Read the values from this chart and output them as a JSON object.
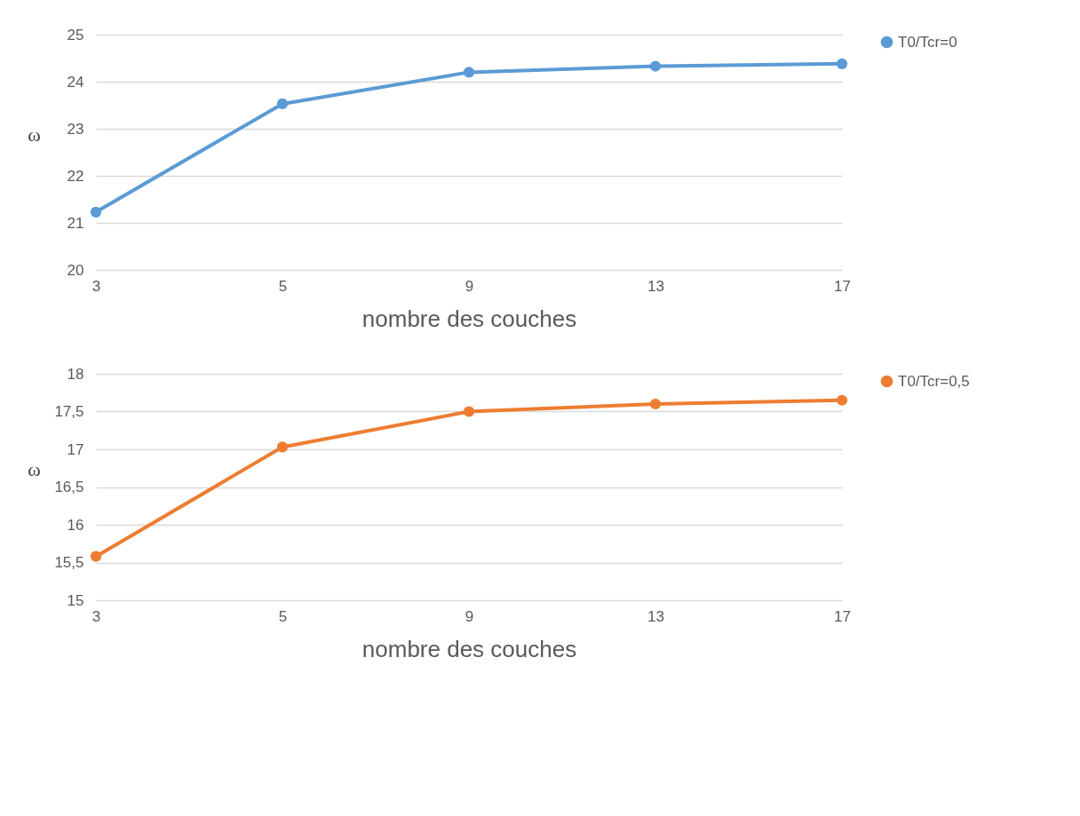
{
  "chart_data": [
    {
      "type": "line",
      "categories": [
        "3",
        "5",
        "9",
        "13",
        "17"
      ],
      "xlabel": "nombre des couches",
      "ylabel": "ω",
      "ylim": [
        20,
        25
      ],
      "yticks": [
        20,
        21,
        22,
        23,
        24,
        25
      ],
      "grid": "y",
      "legend": "right",
      "marker": "circle",
      "series": [
        {
          "name": "T0/Tcr=0",
          "color": "#5b9bd5",
          "values": [
            21.23,
            23.53,
            24.2,
            24.33,
            24.38
          ]
        }
      ]
    },
    {
      "type": "line",
      "categories": [
        "3",
        "5",
        "9",
        "13",
        "17"
      ],
      "xlabel": "nombre des couches",
      "ylabel": "ω",
      "ylim": [
        15,
        18
      ],
      "yticks": [
        15,
        {
          "value": 15.5,
          "label": "15,5"
        },
        16,
        {
          "value": 16.5,
          "label": "16,5"
        },
        17,
        {
          "value": 17.5,
          "label": "17,5"
        },
        18
      ],
      "grid": "y",
      "legend": "right",
      "marker": "circle",
      "series": [
        {
          "name": "T0/Tcr=0,5",
          "color": "#ed7d31",
          "values": [
            15.58,
            17.03,
            17.5,
            17.6,
            17.65
          ]
        }
      ]
    }
  ]
}
